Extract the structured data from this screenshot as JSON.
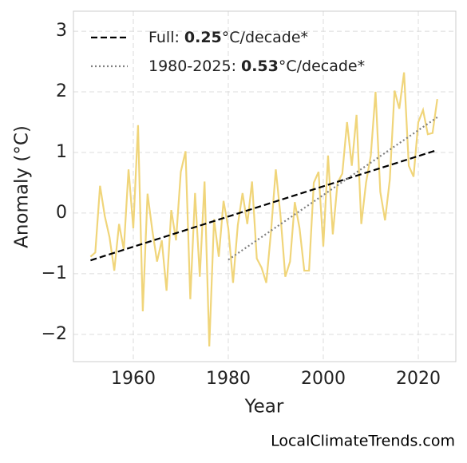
{
  "chart_data": {
    "type": "line",
    "xlabel": "Year",
    "ylabel": "Anomaly (°C)",
    "xlim": [
      1947.4,
      2027.9
    ],
    "ylim": [
      -2.45,
      3.33
    ],
    "xticks": [
      1960,
      1980,
      2000,
      2020
    ],
    "yticks": [
      {
        "value": -2,
        "label": "−2"
      },
      {
        "value": -1,
        "label": "−1"
      },
      0,
      1,
      2,
      3
    ],
    "grid": true,
    "series": [
      {
        "color": "#f0d57a",
        "style": "solid",
        "x": [
          1951,
          1952,
          1953,
          1954,
          1955,
          1956,
          1957,
          1958,
          1959,
          1960,
          1961,
          1962,
          1963,
          1964,
          1965,
          1966,
          1967,
          1968,
          1969,
          1970,
          1971,
          1972,
          1973,
          1974,
          1975,
          1976,
          1977,
          1978,
          1979,
          1980,
          1981,
          1982,
          1983,
          1984,
          1985,
          1986,
          1987,
          1988,
          1989,
          1990,
          1991,
          1992,
          1993,
          1994,
          1995,
          1996,
          1997,
          1998,
          1999,
          2000,
          2001,
          2002,
          2003,
          2004,
          2005,
          2006,
          2007,
          2008,
          2009,
          2010,
          2011,
          2012,
          2013,
          2014,
          2015,
          2016,
          2017,
          2018,
          2019,
          2020,
          2021,
          2022,
          2023,
          2024
        ],
        "values": [
          -0.72,
          -0.65,
          0.45,
          -0.05,
          -0.4,
          -0.95,
          -0.18,
          -0.6,
          0.72,
          -0.25,
          1.45,
          -1.62,
          0.32,
          -0.28,
          -0.8,
          -0.45,
          -1.28,
          0.05,
          -0.45,
          0.68,
          1.02,
          -1.42,
          0.33,
          -1.05,
          0.52,
          -2.2,
          -0.1,
          -0.72,
          0.2,
          -0.25,
          -1.15,
          -0.2,
          0.33,
          -0.18,
          0.52,
          -0.75,
          -0.9,
          -1.15,
          -0.3,
          0.72,
          -0.05,
          -1.05,
          -0.8,
          0.18,
          -0.25,
          -0.95,
          -0.95,
          0.5,
          0.68,
          -0.55,
          0.95,
          -0.35,
          0.5,
          0.65,
          1.5,
          0.78,
          1.62,
          -0.18,
          0.5,
          0.95,
          2.0,
          0.35,
          -0.12,
          0.55,
          2.02,
          1.72,
          2.32,
          0.78,
          0.6,
          1.5,
          1.7,
          1.3,
          1.32,
          1.88
        ]
      },
      {
        "color": "#000000",
        "style": "dashed",
        "x": [
          1951,
          2024
        ],
        "values": [
          -0.78,
          1.04
        ]
      },
      {
        "color": "#808080",
        "style": "dotted",
        "x": [
          1980,
          2024
        ],
        "values": [
          -0.77,
          1.58
        ]
      }
    ],
    "legend_position": "upper left",
    "legend": [
      {
        "series": 1,
        "label": "Full:",
        "rate": 0.25,
        "unit": "°C/decade*"
      },
      {
        "series": 2,
        "label": "1980-2025:",
        "rate": 0.53,
        "unit": "°C/decade*"
      }
    ]
  },
  "footer": "LocalClimateTrends.com"
}
